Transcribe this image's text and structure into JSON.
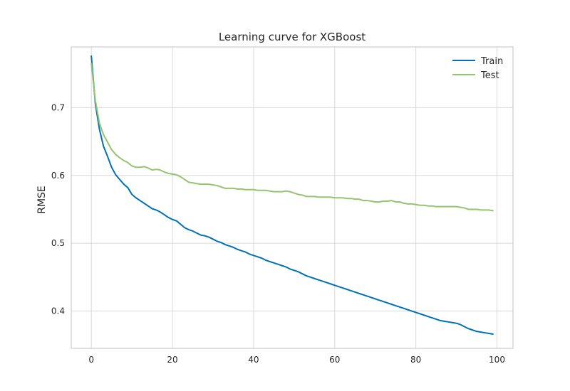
{
  "chart_data": {
    "type": "line",
    "title": "Learning curve for XGBoost",
    "xlabel": "",
    "ylabel": "RMSE",
    "xlim": [
      -4.95,
      103.95
    ],
    "ylim": [
      0.345,
      0.7895
    ],
    "xticks": [
      0,
      20,
      40,
      60,
      80,
      100
    ],
    "yticks": [
      0.4,
      0.5,
      0.6,
      0.7
    ],
    "xtick_labels": [
      "0",
      "20",
      "40",
      "60",
      "80",
      "100"
    ],
    "ytick_labels": [
      "0.4",
      "0.5",
      "0.6",
      "0.7"
    ],
    "grid": true,
    "legend_position": "top-right",
    "x": [
      0,
      1,
      2,
      3,
      4,
      5,
      6,
      7,
      8,
      9,
      10,
      11,
      12,
      13,
      14,
      15,
      16,
      17,
      18,
      19,
      20,
      21,
      22,
      23,
      24,
      25,
      26,
      27,
      28,
      29,
      30,
      31,
      32,
      33,
      34,
      35,
      36,
      37,
      38,
      39,
      40,
      41,
      42,
      43,
      44,
      45,
      46,
      47,
      48,
      49,
      50,
      51,
      52,
      53,
      54,
      55,
      56,
      57,
      58,
      59,
      60,
      61,
      62,
      63,
      64,
      65,
      66,
      67,
      68,
      69,
      70,
      71,
      72,
      73,
      74,
      75,
      76,
      77,
      78,
      79,
      80,
      81,
      82,
      83,
      84,
      85,
      86,
      87,
      88,
      89,
      90,
      91,
      92,
      93,
      94,
      95,
      96,
      97,
      98,
      99
    ],
    "series": [
      {
        "name": "Train",
        "color": "#0072b2",
        "values": [
          0.776,
          0.705,
          0.668,
          0.643,
          0.628,
          0.612,
          0.601,
          0.594,
          0.587,
          0.582,
          0.572,
          0.567,
          0.563,
          0.559,
          0.555,
          0.551,
          0.549,
          0.546,
          0.542,
          0.538,
          0.535,
          0.533,
          0.528,
          0.523,
          0.52,
          0.518,
          0.515,
          0.512,
          0.511,
          0.509,
          0.506,
          0.503,
          0.501,
          0.498,
          0.496,
          0.494,
          0.491,
          0.489,
          0.487,
          0.484,
          0.482,
          0.48,
          0.478,
          0.475,
          0.473,
          0.471,
          0.469,
          0.467,
          0.465,
          0.462,
          0.46,
          0.458,
          0.455,
          0.452,
          0.45,
          0.448,
          0.446,
          0.444,
          0.442,
          0.44,
          0.438,
          0.436,
          0.434,
          0.432,
          0.43,
          0.428,
          0.426,
          0.424,
          0.422,
          0.42,
          0.418,
          0.416,
          0.414,
          0.412,
          0.41,
          0.408,
          0.406,
          0.404,
          0.402,
          0.4,
          0.398,
          0.396,
          0.394,
          0.392,
          0.39,
          0.388,
          0.386,
          0.385,
          0.384,
          0.383,
          0.382,
          0.38,
          0.377,
          0.374,
          0.372,
          0.37,
          0.369,
          0.368,
          0.367,
          0.366
        ]
      },
      {
        "name": "Test",
        "color": "#95c370",
        "values": [
          0.765,
          0.71,
          0.677,
          0.66,
          0.649,
          0.638,
          0.631,
          0.626,
          0.622,
          0.619,
          0.614,
          0.612,
          0.612,
          0.613,
          0.611,
          0.608,
          0.609,
          0.608,
          0.605,
          0.603,
          0.602,
          0.601,
          0.598,
          0.594,
          0.59,
          0.589,
          0.588,
          0.587,
          0.587,
          0.587,
          0.586,
          0.585,
          0.583,
          0.581,
          0.581,
          0.581,
          0.58,
          0.58,
          0.579,
          0.579,
          0.579,
          0.578,
          0.578,
          0.578,
          0.577,
          0.576,
          0.576,
          0.576,
          0.577,
          0.576,
          0.574,
          0.572,
          0.571,
          0.569,
          0.569,
          0.569,
          0.568,
          0.568,
          0.568,
          0.568,
          0.567,
          0.567,
          0.567,
          0.566,
          0.566,
          0.565,
          0.565,
          0.563,
          0.563,
          0.562,
          0.561,
          0.561,
          0.562,
          0.562,
          0.563,
          0.561,
          0.561,
          0.559,
          0.558,
          0.558,
          0.557,
          0.556,
          0.556,
          0.555,
          0.555,
          0.554,
          0.554,
          0.554,
          0.554,
          0.554,
          0.554,
          0.553,
          0.552,
          0.55,
          0.55,
          0.55,
          0.549,
          0.549,
          0.549,
          0.548
        ]
      }
    ]
  }
}
